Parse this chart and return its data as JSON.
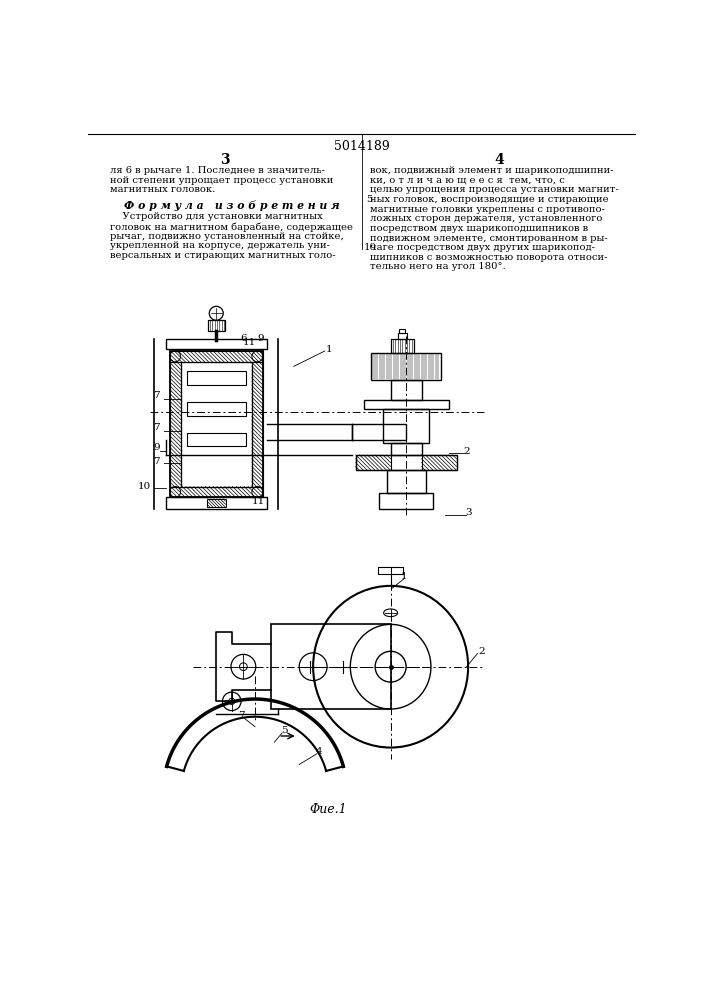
{
  "page_number_center": "5014189",
  "col_left_number": "3",
  "col_right_number": "4",
  "text_left_top": "ля 6 в рычаге 1. Последнее в значитель-\nной степени упрощает процесс установки\nмагнитных головок.",
  "formula_header": "Ф о р м у л а   и з о б р е т е н и я",
  "text_left_body": "    Устройство для установки магнитных\nголовок на магнитном барабане, содержащее\nрычаг, подвижно установленный на стойке,\nукрепленной на корпусе, держатель уни-\nверсальных и стирающих магнитных голо-",
  "text_right_top": "вок, подвижный элемент и шарикоподшипни-\nки, о т л и ч а ю щ е е с я  тем, что, с\nцелью упрощения процесса установки магнит-\nных головок, воспроизводящие и стирающие\nмагнитные головки укреплены с противопо-\nложных сторон держателя, установленного\nпосредством двух шарикоподшипников в\nподвижном элементе, смонтированном в ры-\nчаге посредством двух других шарикопод-\nшипников с возможностью поворота относи-\nтельно него на угол 180°.",
  "fig_caption": "Φue.1",
  "bg_color": "#ffffff",
  "text_color": "#000000",
  "line_color": "#000000"
}
